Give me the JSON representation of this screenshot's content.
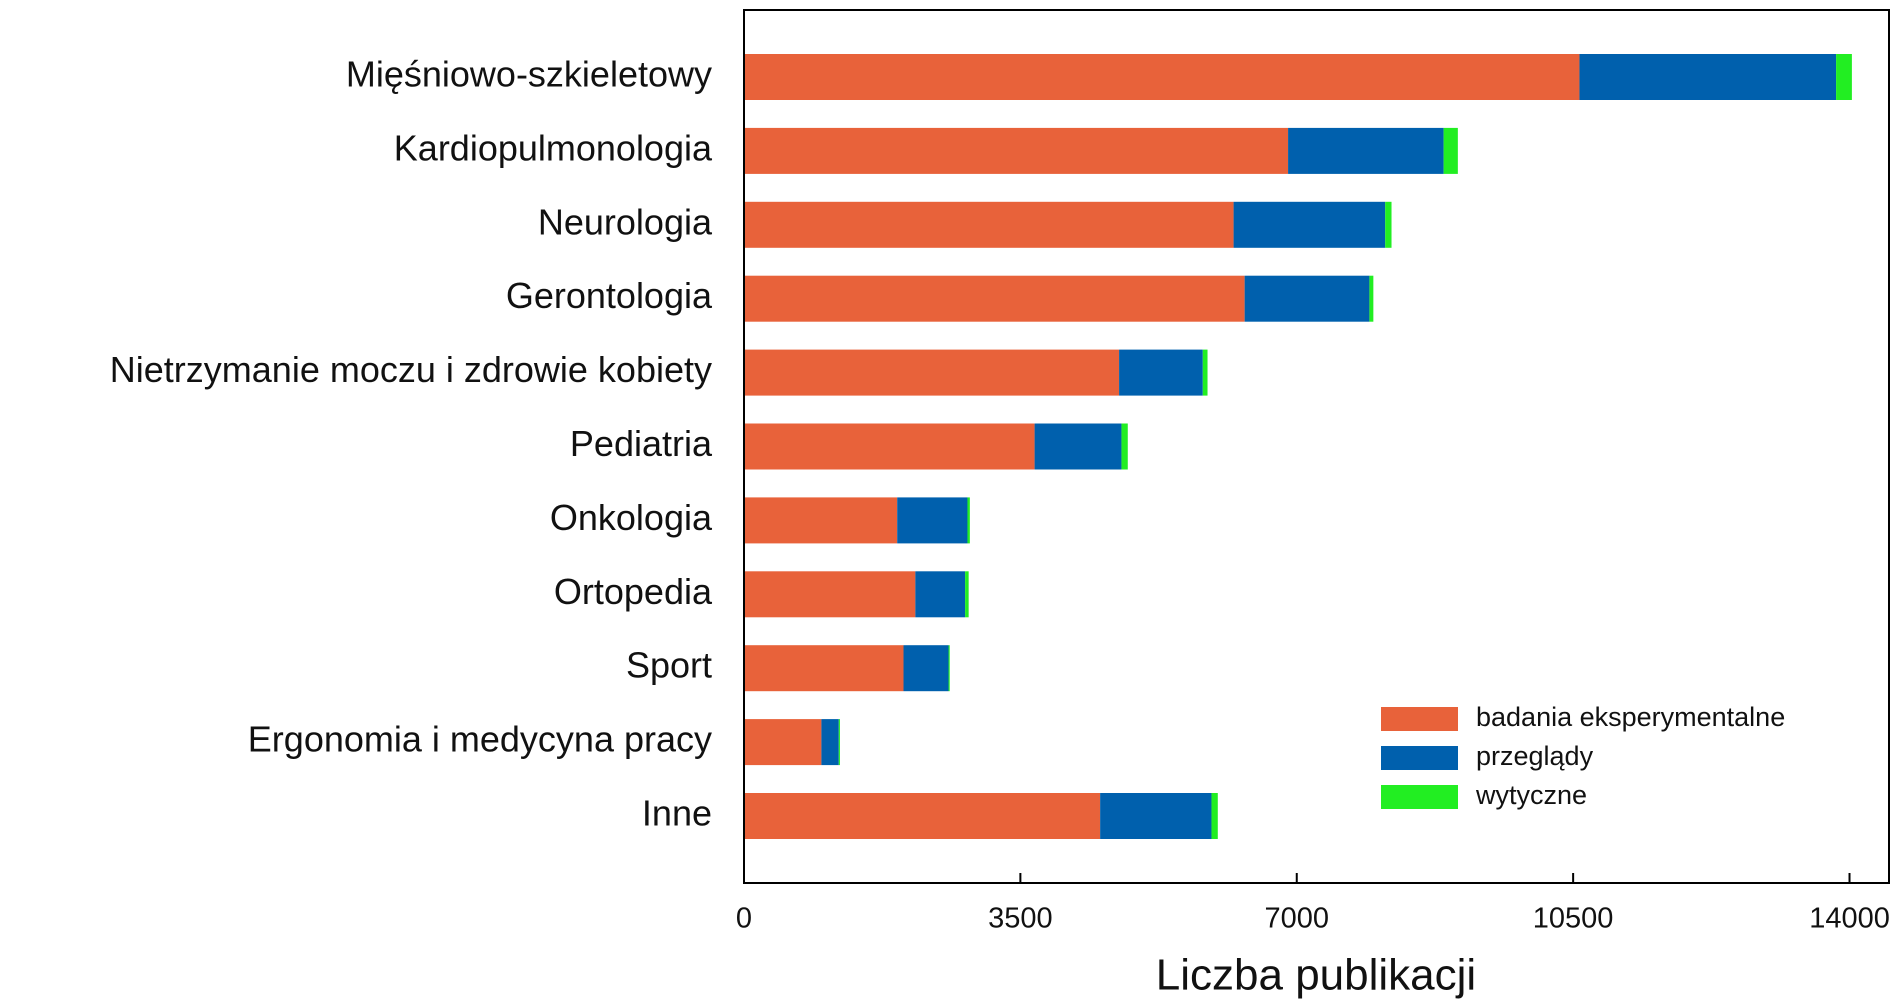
{
  "chart_data": {
    "type": "stacked_barh",
    "xlabel": "Liczba publikacji",
    "categories": [
      "Mięśniowo-szkieletowy",
      "Kardiopulmonologia",
      "Neurologia",
      "Gerontologia",
      "Nietrzymanie moczu i zdrowie kobiety",
      "Pediatria",
      "Onkologia",
      "Ortopedia",
      "Sport",
      "Ergonomia i medycyna pracy",
      "Inne"
    ],
    "series": [
      {
        "name": "badania eksperymentalne",
        "color": "#e8623a",
        "values": [
          10580,
          6890,
          6200,
          6340,
          4750,
          3680,
          1940,
          2170,
          2020,
          980,
          4510
        ]
      },
      {
        "name": "przeglądy",
        "color": "#0060ad",
        "values": [
          3250,
          1970,
          1920,
          1580,
          1060,
          1100,
          890,
          630,
          570,
          220,
          1410
        ]
      },
      {
        "name": "wytyczne",
        "color": "#22ee22",
        "values": [
          200,
          180,
          80,
          50,
          60,
          80,
          30,
          45,
          15,
          15,
          80
        ]
      }
    ],
    "xlim": [
      0,
      14500
    ],
    "xticks": [
      0,
      3500,
      7000,
      10500,
      14000
    ],
    "legend": "lower right"
  }
}
